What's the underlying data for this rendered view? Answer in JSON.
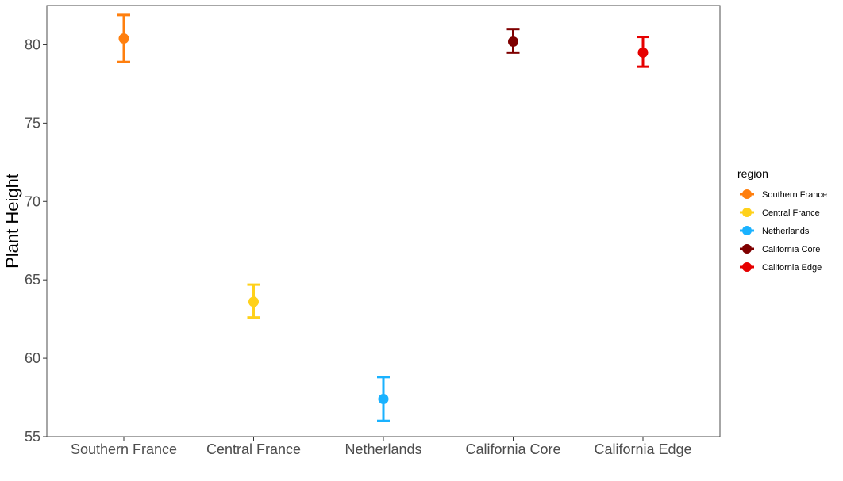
{
  "chart_data": {
    "type": "scatter",
    "subtype": "point-with-error-bars",
    "title": "",
    "xlabel": "",
    "ylabel": "Plant Height",
    "ylim": [
      55,
      82.5
    ],
    "yticks": [
      55,
      60,
      65,
      70,
      75,
      80
    ],
    "grid": false,
    "legend": {
      "title": "region",
      "placement": "right"
    },
    "categories": [
      "Southern France",
      "Central France",
      "Netherlands",
      "California Core",
      "California Edge"
    ],
    "series": [
      {
        "name": "Southern France",
        "color": "#ff7f0e",
        "mean": 80.4,
        "lower": 78.9,
        "upper": 81.9
      },
      {
        "name": "Central France",
        "color": "#ffd11a",
        "mean": 63.6,
        "lower": 62.6,
        "upper": 64.7
      },
      {
        "name": "Netherlands",
        "color": "#1ab2ff",
        "mean": 57.4,
        "lower": 56.0,
        "upper": 58.8
      },
      {
        "name": "California Core",
        "color": "#7f0000",
        "mean": 80.2,
        "lower": 79.5,
        "upper": 81.0
      },
      {
        "name": "California Edge",
        "color": "#e60000",
        "mean": 79.5,
        "lower": 78.6,
        "upper": 80.5
      }
    ]
  }
}
